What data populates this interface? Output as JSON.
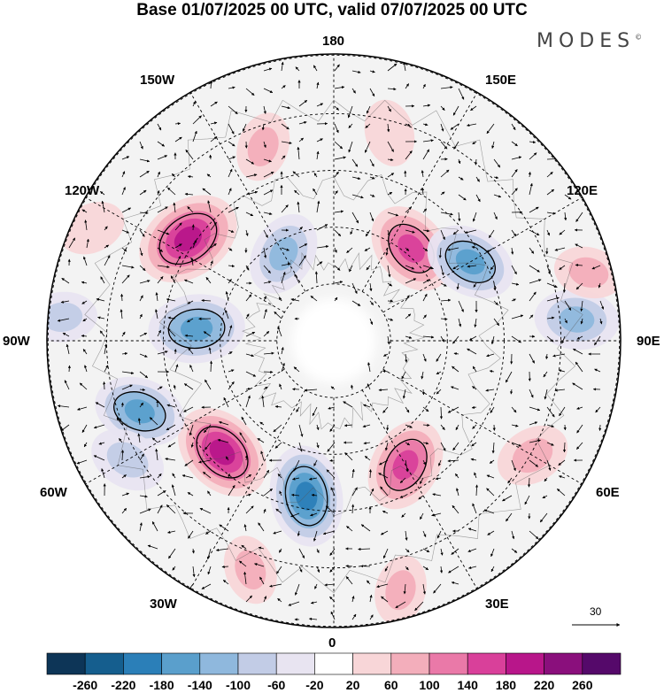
{
  "title": "Base 01/07/2025 00 UTC, valid 07/07/2025 00 UTC",
  "brand": "MODES",
  "brand_mark": "©",
  "longitude_labels": {
    "top": "180",
    "bottom": "0",
    "left": "90W",
    "right": "90E",
    "upper_left_1": "150W",
    "upper_left_2": "120W",
    "upper_right_1": "150E",
    "upper_right_2": "120E",
    "lower_left_1": "60W",
    "lower_left_2": "30W",
    "lower_right_1": "60E",
    "lower_right_2": "30E"
  },
  "vector_scale_label": "30",
  "colorbar": {
    "labels": [
      "-260",
      "-220",
      "-180",
      "-140",
      "-100",
      "-60",
      "-20",
      "20",
      "60",
      "100",
      "140",
      "180",
      "220",
      "260"
    ],
    "colors": [
      "#0d3557",
      "#155e8e",
      "#2b7fb8",
      "#5a9fcc",
      "#8fb8dd",
      "#c2cce6",
      "#e8e4f1",
      "#ffffff",
      "#f8d6d8",
      "#f3aebb",
      "#ea79a8",
      "#d9409a",
      "#b8168a",
      "#8a0f7c",
      "#55096a"
    ]
  },
  "anomaly_centers": [
    {
      "lon": 140,
      "lat_distance": 0.42,
      "value": 160
    },
    {
      "lon": -150,
      "lat_distance": 0.35,
      "value": -120
    },
    {
      "lon": -125,
      "lat_distance": 0.62,
      "value": 210
    },
    {
      "lon": -95,
      "lat_distance": 0.48,
      "value": -170
    },
    {
      "lon": -45,
      "lat_distance": 0.55,
      "value": 190
    },
    {
      "lon": -10,
      "lat_distance": 0.55,
      "value": -190
    },
    {
      "lon": 30,
      "lat_distance": 0.5,
      "value": 160
    },
    {
      "lon": 120,
      "lat_distance": 0.55,
      "value": -150
    },
    {
      "lon": 95,
      "lat_distance": 0.85,
      "value": -120
    },
    {
      "lon": 60,
      "lat_distance": 0.8,
      "value": 80
    },
    {
      "lon": 105,
      "lat_distance": 0.92,
      "value": 60
    },
    {
      "lon": -70,
      "lat_distance": 0.72,
      "value": -150
    },
    {
      "lon": -95,
      "lat_distance": 0.95,
      "value": -60
    },
    {
      "lon": -60,
      "lat_distance": 0.83,
      "value": -90
    },
    {
      "lon": 15,
      "lat_distance": 0.9,
      "value": 60
    },
    {
      "lon": 165,
      "lat_distance": 0.75,
      "value": 50
    },
    {
      "lon": -160,
      "lat_distance": 0.72,
      "value": 60
    },
    {
      "lon": -115,
      "lat_distance": 0.93,
      "value": 50
    },
    {
      "lon": -20,
      "lat_distance": 0.85,
      "value": 60
    }
  ]
}
